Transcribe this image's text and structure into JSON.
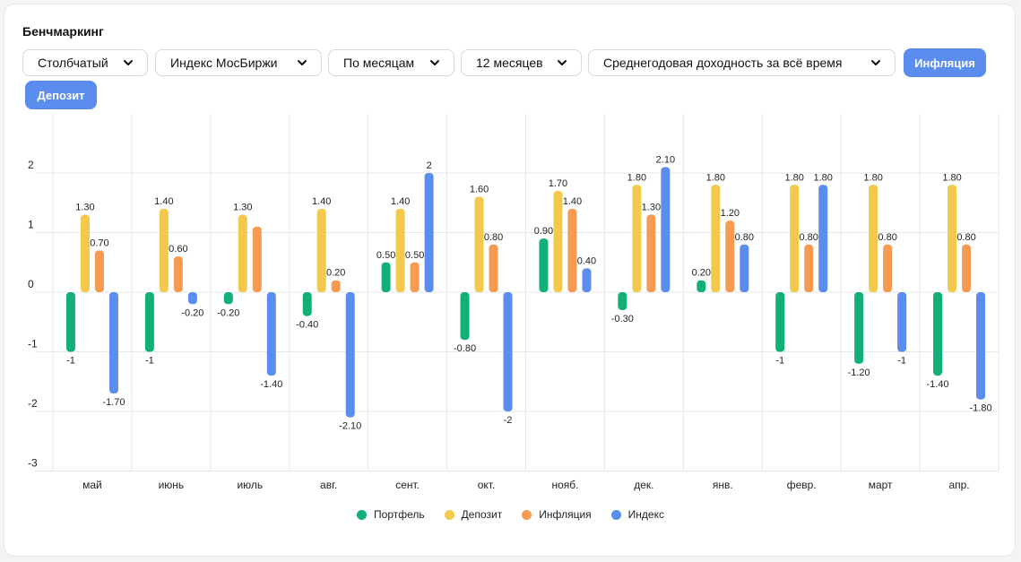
{
  "header": {
    "title": "Бенчмаркинг"
  },
  "controls": {
    "dropdowns": [
      {
        "label": "Столбчатый"
      },
      {
        "label": "Индекс МосБиржи"
      },
      {
        "label": "По месяцам"
      },
      {
        "label": "12 месяцев"
      },
      {
        "label": "Среднегодовая доходность за всё время"
      }
    ],
    "toggles": [
      {
        "label": "Инфляция"
      },
      {
        "label": "Депозит"
      }
    ]
  },
  "colors": {
    "portfolio": "#12b076",
    "deposit": "#f2c94c",
    "inflation": "#f79a52",
    "index": "#5b8def",
    "grid": "#e5e7eb",
    "text": "#222222"
  },
  "chart_data": {
    "type": "bar",
    "categories": [
      "май",
      "июнь",
      "июль",
      "авг.",
      "сент.",
      "окт.",
      "нояб.",
      "дек.",
      "янв.",
      "февр.",
      "март",
      "апр."
    ],
    "yticks": [
      2,
      1,
      0,
      -1,
      -2,
      -3
    ],
    "ylim": [
      -3,
      3
    ],
    "series": [
      {
        "name": "Портфель",
        "key": "portfolio",
        "values": [
          -1,
          -1,
          -0.2,
          -0.4,
          0.5,
          -0.8,
          0.9,
          -0.3,
          0.2,
          -1,
          -1.2,
          -1.4
        ],
        "labels": [
          "-1",
          "-1",
          "-0.20",
          "-0.40",
          "0.50",
          "-0.80",
          "0.90",
          "-0.30",
          "0.20",
          "-1",
          "-1.20",
          "-1.40"
        ]
      },
      {
        "name": "Депозит",
        "key": "deposit",
        "values": [
          1.3,
          1.4,
          1.3,
          1.4,
          1.4,
          1.6,
          1.7,
          1.8,
          1.8,
          1.8,
          1.8,
          1.8
        ],
        "labels": [
          "1.30",
          "1.40",
          "1.30",
          "1.40",
          "1.40",
          "1.60",
          "1.70",
          "1.80",
          "1.80",
          "1.80",
          "1.80",
          "1.80"
        ]
      },
      {
        "name": "Инфляция",
        "key": "inflation",
        "values": [
          0.7,
          0.6,
          1.1,
          0.2,
          0.5,
          0.8,
          1.4,
          1.3,
          1.2,
          0.8,
          0.8,
          0.8
        ],
        "labels": [
          "0.70",
          "0.60",
          "",
          "0.20",
          "0.50",
          "0.80",
          "1.40",
          "1.30",
          "1.20",
          "0.80",
          "0.80",
          "0.80"
        ]
      },
      {
        "name": "Индекс",
        "key": "index",
        "values": [
          -1.7,
          -0.2,
          -1.4,
          -2.1,
          2,
          -2,
          0.4,
          2.1,
          0.8,
          1.8,
          -1,
          -1.8
        ],
        "labels": [
          "-1.70",
          "-0.20",
          "-1.40",
          "-2.10",
          "2",
          "-2",
          "0.40",
          "2.10",
          "0.80",
          "1.80",
          "-1",
          "-1.80"
        ]
      }
    ]
  }
}
